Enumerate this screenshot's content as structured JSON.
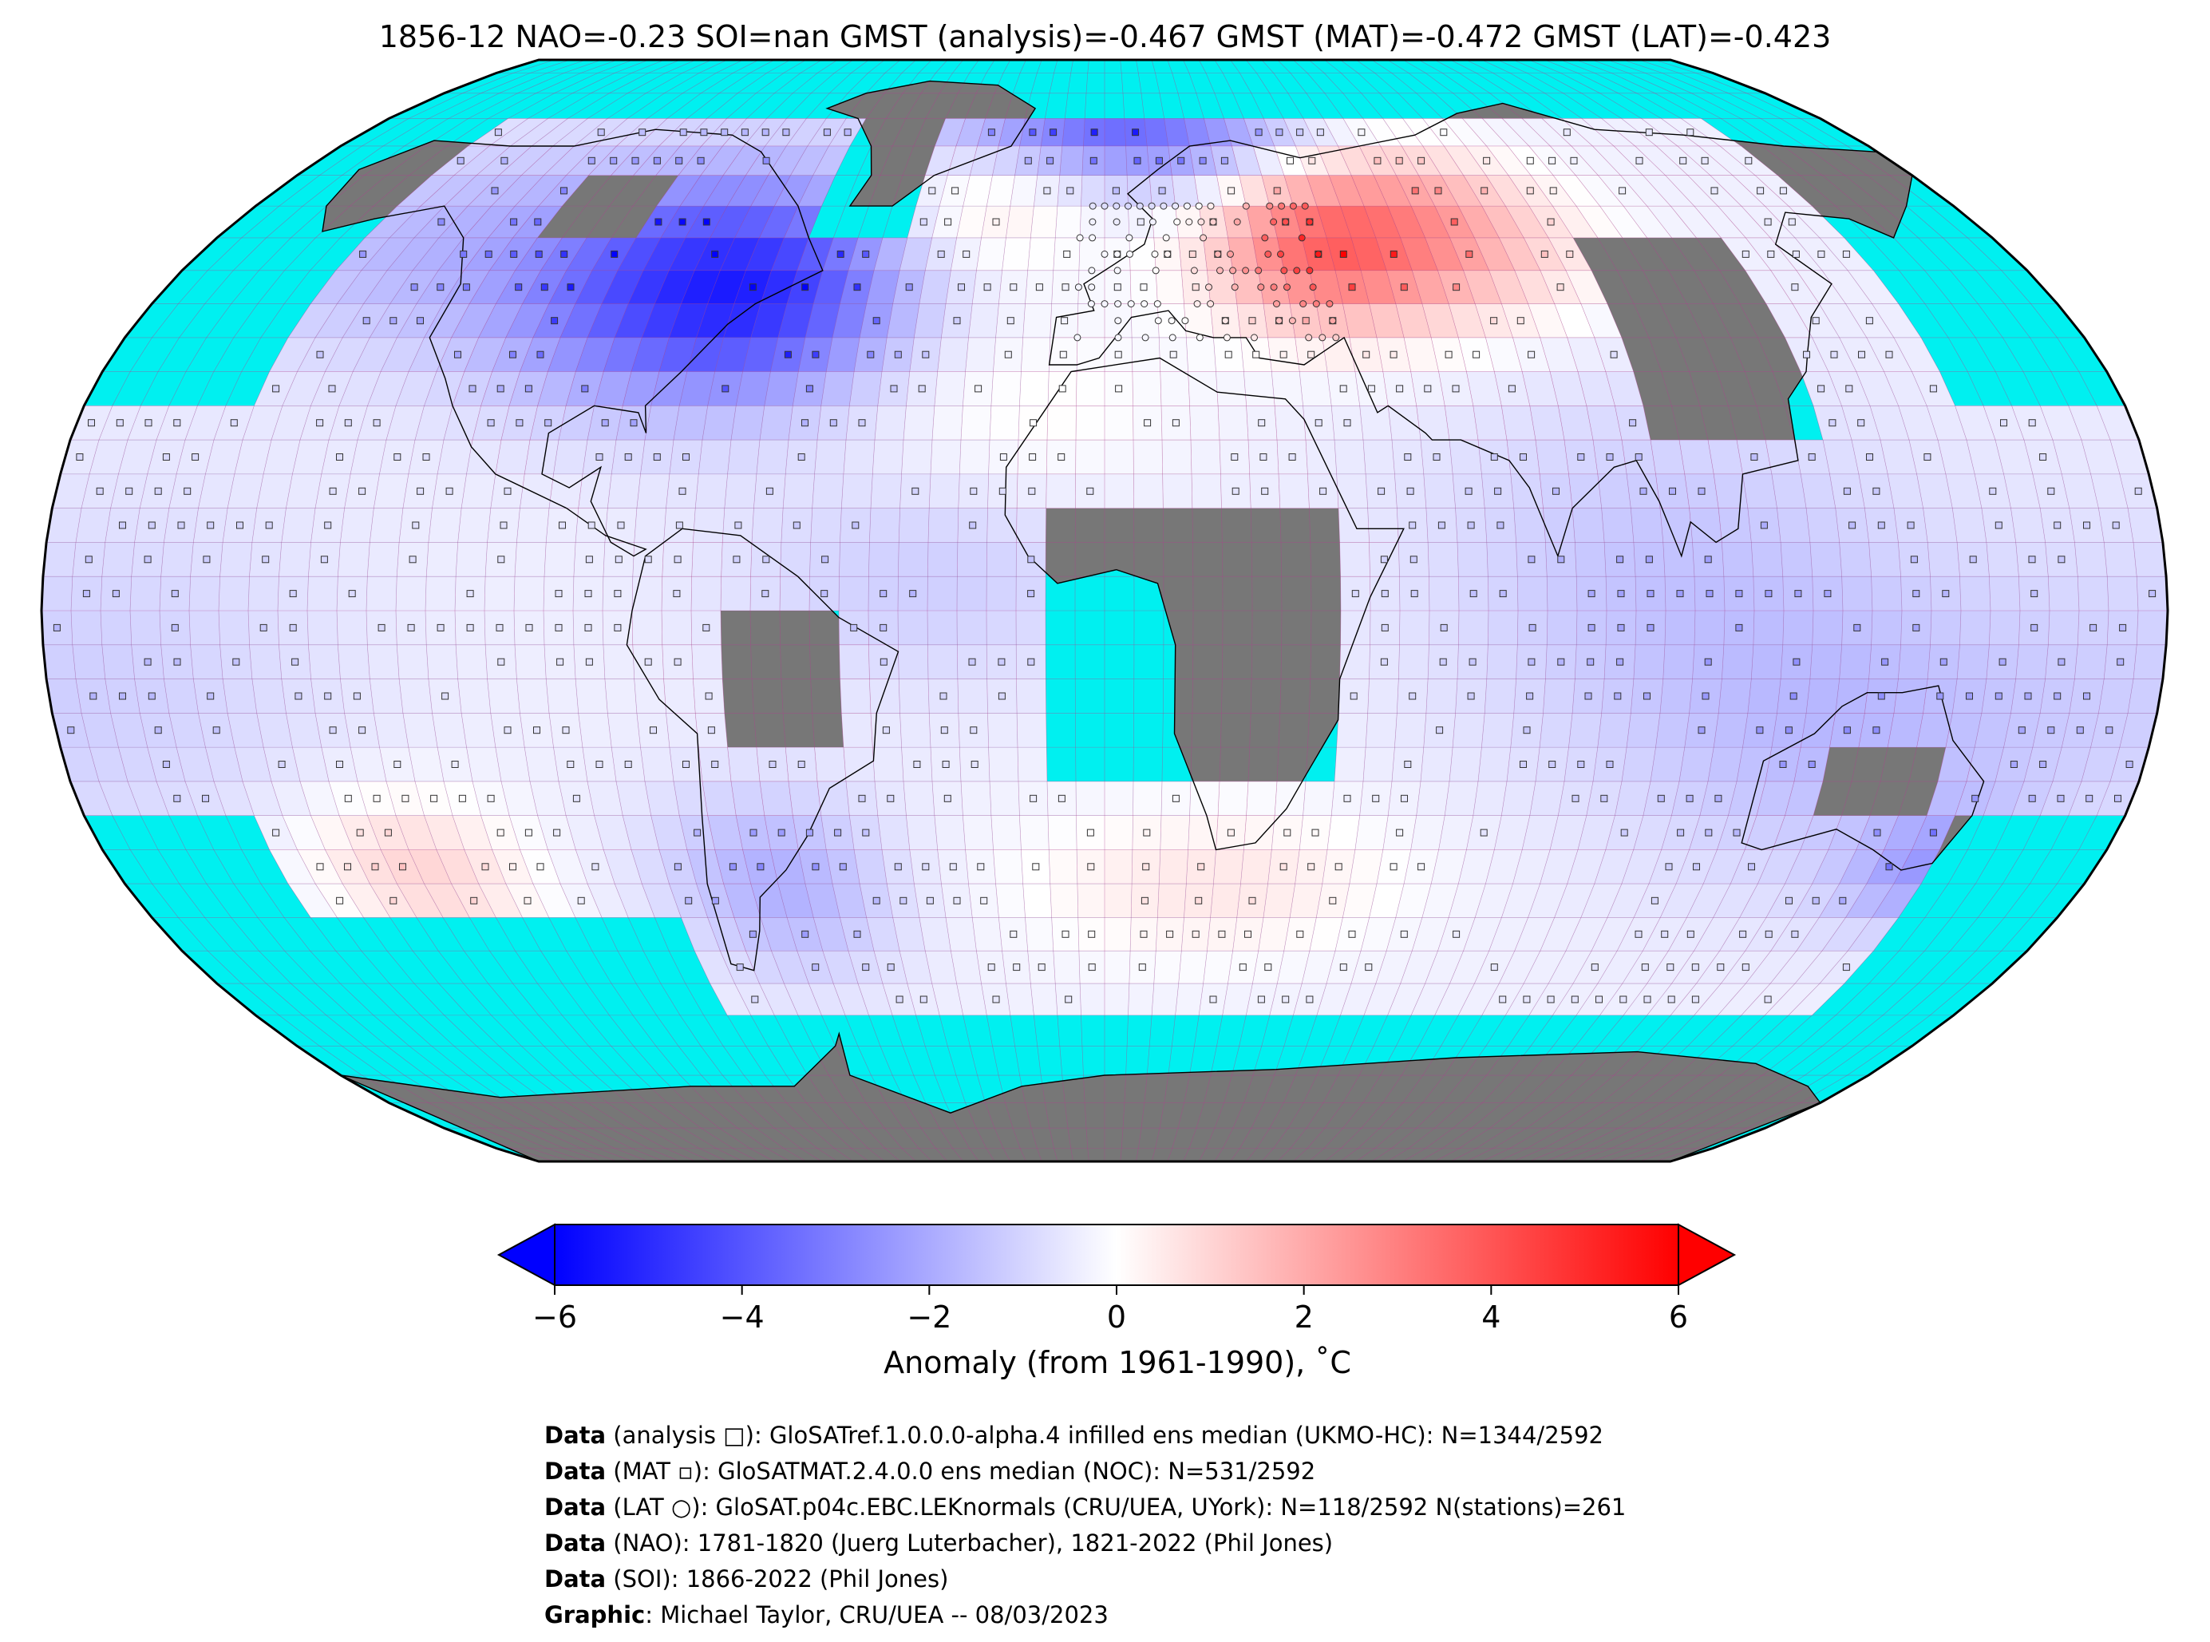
{
  "title": "1856-12 NAO=-0.23 SOI=nan GMST (analysis)=-0.467 GMST (MAT)=-0.472 GMST (LAT)=-0.423",
  "map": {
    "projection": "Robinson",
    "ocean_nodata_color": "#00f0f0",
    "land_nodata_color": "#777777",
    "grid_color": "#b04090",
    "coast_color": "#000000",
    "marker_types": [
      "analysis-square",
      "MAT-square",
      "LAT-circle"
    ]
  },
  "colorbar": {
    "ticks": [
      "−6",
      "−4",
      "−2",
      "0",
      "2",
      "4",
      "6"
    ],
    "tick_values": [
      -6,
      -4,
      -2,
      0,
      2,
      4,
      6
    ],
    "label": "Anomaly (from 1961-1990), ˚C",
    "colormap": "bwr",
    "extend": "both",
    "vmin": -6,
    "vmax": 6,
    "color_min": "#0000ff",
    "color_mid": "#ffffff",
    "color_max": "#ff0000"
  },
  "credits": [
    {
      "bold": "Data",
      "text": " (analysis □): GloSATref.1.0.0.0-alpha.4 infilled ens median (UKMO-HC): N=1344/2592"
    },
    {
      "bold": "Data",
      "text": " (MAT ▫): GloSATMAT.2.4.0.0 ens median (NOC): N=531/2592"
    },
    {
      "bold": "Data",
      "text": " (LAT ○): GloSAT.p04c.EBC.LEKnormals (CRU/UEA, UYork): N=118/2592 N(stations)=261"
    },
    {
      "bold": "Data",
      "text": " (NAO): 1781-1820 (Juerg Luterbacher), 1821-2022 (Phil Jones)"
    },
    {
      "bold": "Data",
      "text": " (SOI): 1866-2022 (Phil Jones)"
    },
    {
      "bold": "Graphic",
      "text": ": Michael Taylor, CRU/UEA -- 08/03/2023"
    }
  ]
}
